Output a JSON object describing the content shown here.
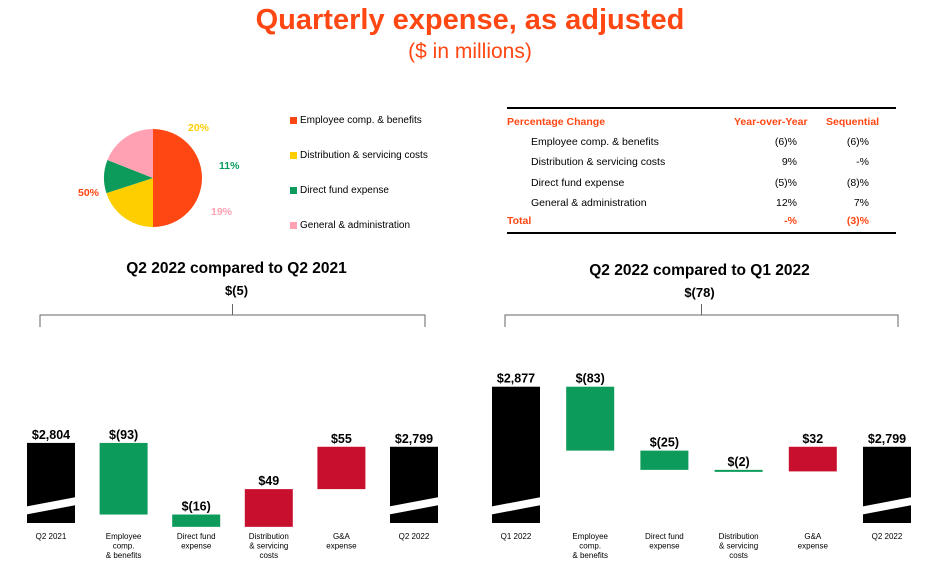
{
  "header": {
    "title": "Quarterly expense, as adjusted",
    "subtitle": "($ in millions)"
  },
  "chart_data": [
    {
      "type": "pie",
      "slices": [
        {
          "name": "Employee comp. & benefits",
          "value": 50,
          "label": "50%",
          "color": "#ff4713"
        },
        {
          "name": "Distribution & servicing costs",
          "value": 20,
          "label": "20%",
          "color": "#ffce00"
        },
        {
          "name": "Direct fund expense",
          "value": 11,
          "label": "11%",
          "color": "#0d9b5c"
        },
        {
          "name": "General & administration",
          "value": 19,
          "label": "19%",
          "color": "#ffa1b2"
        }
      ]
    },
    {
      "type": "table",
      "columns": [
        "Percentage Change",
        "Year-over-Year",
        "Sequential"
      ],
      "rows": [
        {
          "label": "Employee comp. & benefits",
          "yoy": "(6)%",
          "seq": "(6)%"
        },
        {
          "label": "Distribution & servicing costs",
          "yoy": "9%",
          "seq": "-%"
        },
        {
          "label": "Direct fund expense",
          "yoy": "(5)%",
          "seq": "(8)%"
        },
        {
          "label": "General & administration",
          "yoy": "12%",
          "seq": "7%"
        }
      ],
      "total": {
        "label": "Total",
        "yoy": "-%",
        "seq": "(3)%"
      }
    },
    {
      "type": "bar",
      "subtype": "waterfall",
      "title": "Q2 2022 compared to Q2 2021",
      "subtitle": "$(5)",
      "categories": [
        "Q2 2021",
        "Employee comp. & benefits",
        "Direct fund expense",
        "Distribution & servicing costs",
        "G&A expense",
        "Q2 2022"
      ],
      "category_lines": [
        [
          "Q2 2021"
        ],
        [
          "Employee",
          "comp.",
          "& benefits"
        ],
        [
          "Direct fund",
          "expense"
        ],
        [
          "Distribution",
          "& servicing",
          "costs"
        ],
        [
          "G&A",
          "expense"
        ],
        [
          "Q2 2022"
        ]
      ],
      "values": [
        2804,
        -93,
        -16,
        49,
        55,
        2799
      ],
      "labels": [
        "$2,804",
        "$(93)",
        "$(16)",
        "$49",
        "$55",
        "$2,799"
      ],
      "kinds": [
        "total",
        "delta",
        "delta",
        "delta",
        "delta",
        "total"
      ],
      "colors": {
        "total": "#000000",
        "decrease": "#0d9b5c",
        "increase": "#c8102e"
      }
    },
    {
      "type": "bar",
      "subtype": "waterfall",
      "title": "Q2 2022 compared to Q1 2022",
      "subtitle": "$(78)",
      "categories": [
        "Q1 2022",
        "Employee comp. & benefits",
        "Direct fund expense",
        "Distribution & servicing costs",
        "G&A expense",
        "Q2 2022"
      ],
      "category_lines": [
        [
          "Q1 2022"
        ],
        [
          "Employee",
          "comp.",
          "& benefits"
        ],
        [
          "Direct fund",
          "expense"
        ],
        [
          "Distribution",
          "& servicing",
          "costs"
        ],
        [
          "G&A",
          "expense"
        ],
        [
          "Q2 2022"
        ]
      ],
      "values": [
        2877,
        -83,
        -25,
        -2,
        32,
        2799
      ],
      "labels": [
        "$2,877",
        "$(83)",
        "$(25)",
        "$(2)",
        "$32",
        "$2,799"
      ],
      "kinds": [
        "total",
        "delta",
        "delta",
        "delta",
        "delta",
        "total"
      ],
      "colors": {
        "total": "#000000",
        "decrease": "#0d9b5c",
        "increase": "#c8102e"
      }
    }
  ]
}
